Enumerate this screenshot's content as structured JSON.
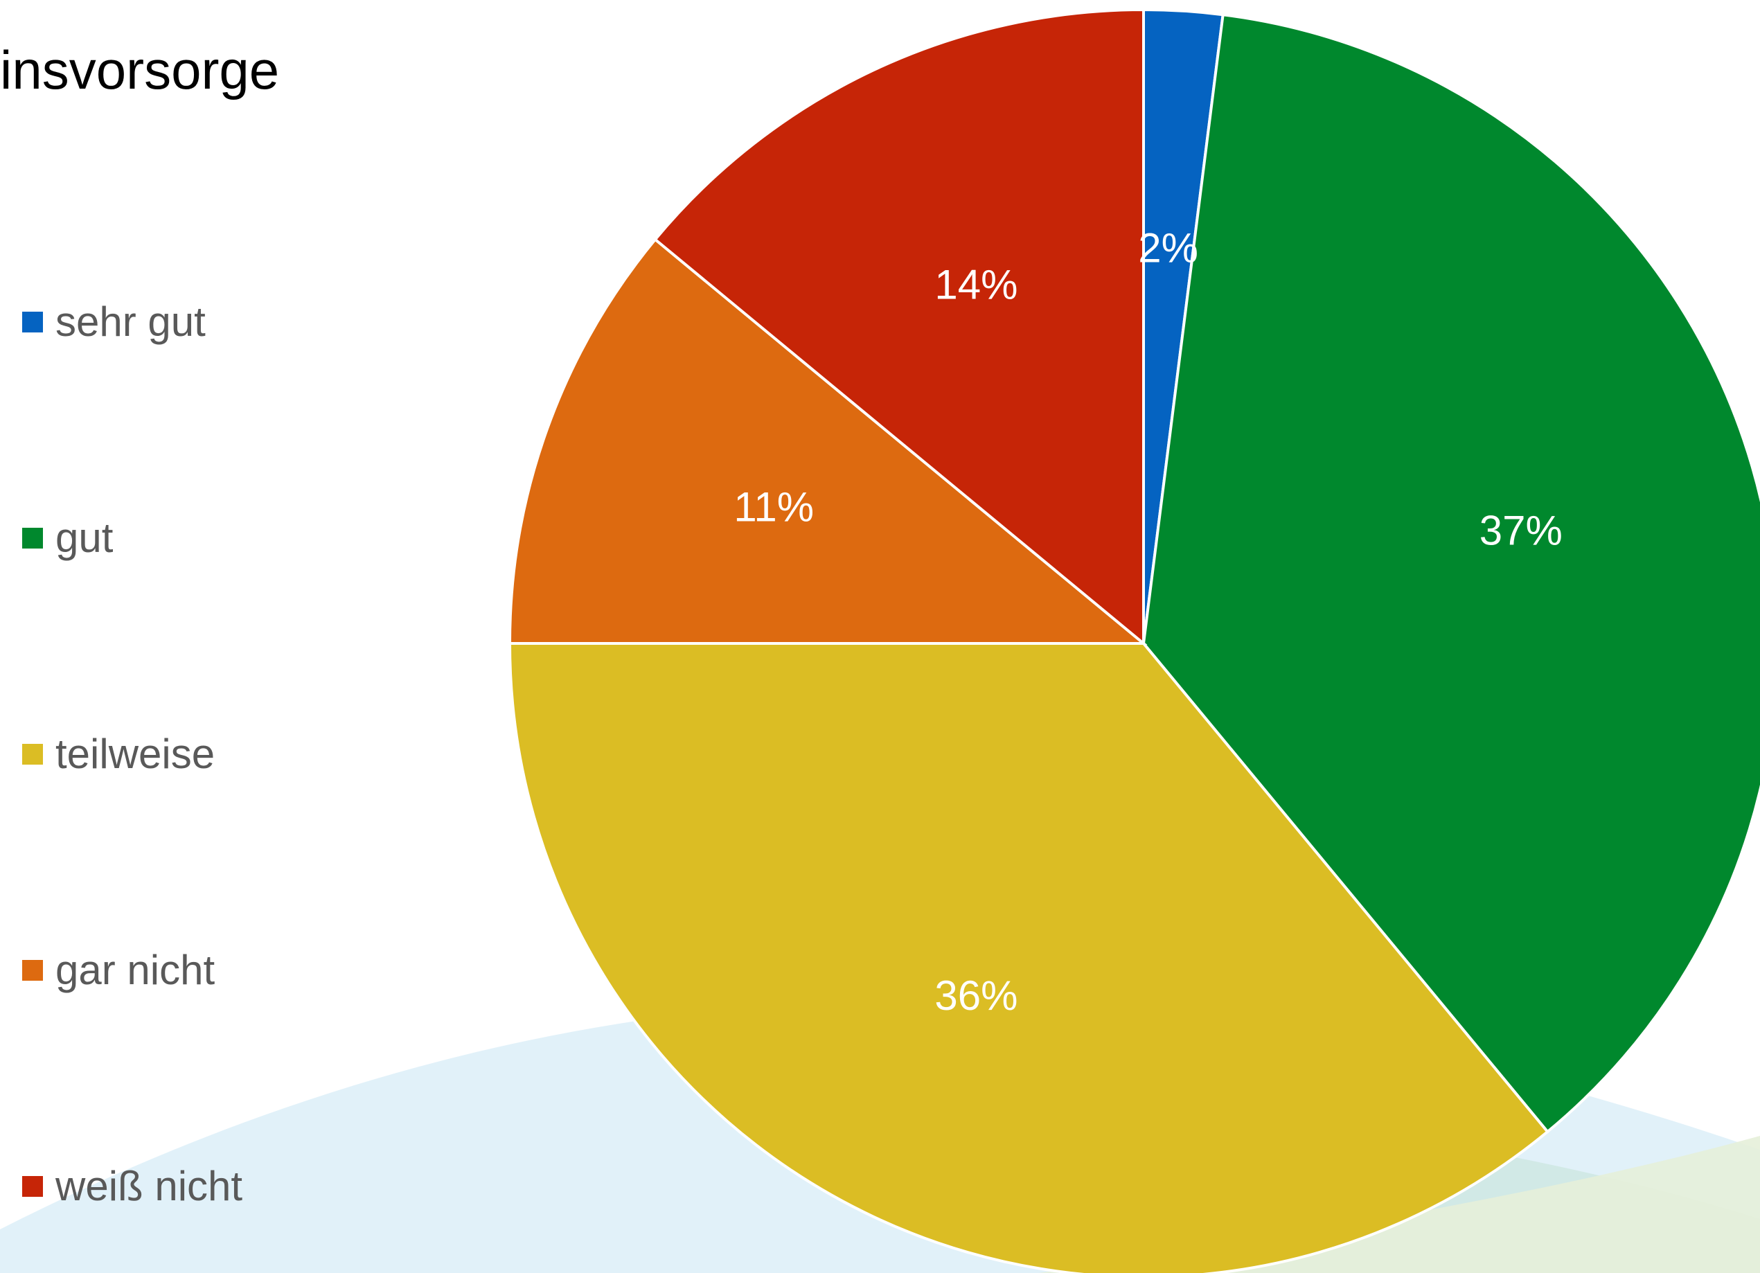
{
  "chart_data": {
    "type": "pie",
    "title": "insvorsorge",
    "categories": [
      "sehr gut",
      "gut",
      "teilweise",
      "gar nicht",
      "weiß nicht"
    ],
    "values": [
      2,
      37,
      36,
      11,
      14
    ],
    "value_labels": [
      "2%",
      "37%",
      "36%",
      "11%",
      "14%"
    ],
    "colors": [
      "#0563C1",
      "#00882D",
      "#DBBD24",
      "#DD6A10",
      "#C62507"
    ],
    "legend_position": "left"
  },
  "background": {
    "swoosh_colors": [
      "#D6EBF7",
      "#CDE7E1",
      "#E6EFD9"
    ]
  }
}
